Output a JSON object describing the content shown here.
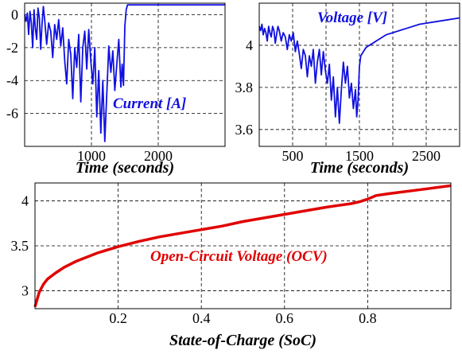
{
  "chart_data": [
    {
      "type": "line",
      "xlabel": "Time (seconds)",
      "ylabel": "",
      "xlim": [
        0,
        3000
      ],
      "ylim": [
        -8,
        0.7
      ],
      "xticks": [
        1000,
        2000
      ],
      "yticks": [
        0,
        -2,
        -4,
        -6
      ],
      "grid": true,
      "series": [
        {
          "name": "Current [A]",
          "color": "#1010e0",
          "x": [
            0,
            20,
            40,
            60,
            80,
            100,
            120,
            140,
            160,
            180,
            200,
            220,
            240,
            260,
            280,
            300,
            330,
            360,
            390,
            420,
            450,
            480,
            510,
            540,
            570,
            600,
            630,
            660,
            690,
            720,
            750,
            780,
            810,
            840,
            870,
            900,
            930,
            960,
            990,
            1020,
            1050,
            1080,
            1110,
            1140,
            1170,
            1200,
            1230,
            1260,
            1290,
            1320,
            1350,
            1380,
            1410,
            1440,
            1460,
            1480,
            1500,
            1520,
            1540,
            3000
          ],
          "y": [
            0,
            -0.4,
            0.1,
            -1.2,
            0.2,
            -0.5,
            -2.0,
            0.3,
            -0.8,
            -1.5,
            0.4,
            -0.2,
            -2.1,
            -0.6,
            0.5,
            -0.3,
            -1.8,
            -0.5,
            -1.0,
            -2.6,
            -0.6,
            -1.5,
            -0.3,
            -1.9,
            -0.8,
            -2.8,
            -4.2,
            -1.5,
            -2.4,
            -5.1,
            -2.0,
            -3.2,
            -1.2,
            -5.3,
            -2.0,
            -1.0,
            -3.3,
            -0.9,
            -2.8,
            -4.2,
            -2.0,
            -6.2,
            -3.4,
            -7.2,
            -4.0,
            -7.7,
            -4.8,
            -1.9,
            -3.5,
            -2.2,
            -4.6,
            -3.0,
            -1.5,
            -4.4,
            -3.0,
            -4.3,
            -0.7,
            0.3,
            0.6,
            0.6
          ]
        }
      ]
    },
    {
      "type": "line",
      "xlabel": "Time (seconds)",
      "ylabel": "",
      "xlim": [
        0,
        3000
      ],
      "ylim": [
        3.52,
        4.2
      ],
      "xticks": [
        500,
        1000,
        1500,
        2000,
        2500
      ],
      "xtick_labels": [
        "500",
        "",
        "1500",
        "",
        "2500"
      ],
      "yticks": [
        4,
        3.8,
        3.6
      ],
      "grid": true,
      "series": [
        {
          "name": "Voltage [V]",
          "color": "#1010e0",
          "x": [
            0,
            20,
            40,
            60,
            80,
            100,
            120,
            140,
            160,
            180,
            200,
            220,
            240,
            260,
            280,
            300,
            330,
            360,
            390,
            420,
            450,
            480,
            510,
            540,
            570,
            600,
            630,
            660,
            690,
            720,
            750,
            780,
            810,
            840,
            870,
            900,
            930,
            960,
            990,
            1020,
            1050,
            1080,
            1110,
            1140,
            1170,
            1200,
            1230,
            1260,
            1290,
            1320,
            1350,
            1380,
            1410,
            1440,
            1460,
            1480,
            1500,
            1520,
            1540,
            1560,
            1600,
            1650,
            1700,
            1800,
            1900,
            2000,
            2200,
            2400,
            2600,
            2800,
            3000
          ],
          "y": [
            4.09,
            4.07,
            4.1,
            4.05,
            4.08,
            4.06,
            4.02,
            4.09,
            4.06,
            4.04,
            4.09,
            4.07,
            4.01,
            4.05,
            4.09,
            4.07,
            4.02,
            4.06,
            4.04,
            3.98,
            4.05,
            4.02,
            4.06,
            3.97,
            4.02,
            3.96,
            3.89,
            3.98,
            3.95,
            3.85,
            3.95,
            3.9,
            3.98,
            3.82,
            3.92,
            3.98,
            3.86,
            3.97,
            3.88,
            3.82,
            3.91,
            3.74,
            3.85,
            3.66,
            3.8,
            3.63,
            3.79,
            3.92,
            3.82,
            3.9,
            3.75,
            3.82,
            3.7,
            3.79,
            3.66,
            3.74,
            3.9,
            3.95,
            3.96,
            3.97,
            3.99,
            4.0,
            4.01,
            4.03,
            4.05,
            4.06,
            4.08,
            4.1,
            4.11,
            4.12,
            4.13
          ]
        }
      ]
    },
    {
      "type": "line",
      "xlabel": "State-of-Charge (SoC)",
      "ylabel": "",
      "xlim": [
        0,
        1
      ],
      "ylim": [
        2.8,
        4.2
      ],
      "xticks": [
        0.2,
        0.4,
        0.6,
        0.8
      ],
      "yticks": [
        4,
        3.5,
        3
      ],
      "grid": true,
      "series": [
        {
          "name": "Open-Circuit Voltage (OCV)",
          "color": "#e00000",
          "x": [
            0.0,
            0.005,
            0.01,
            0.02,
            0.03,
            0.05,
            0.07,
            0.1,
            0.15,
            0.2,
            0.25,
            0.3,
            0.35,
            0.4,
            0.45,
            0.5,
            0.55,
            0.6,
            0.65,
            0.7,
            0.73,
            0.76,
            0.78,
            0.8,
            0.82,
            0.85,
            0.9,
            0.95,
            1.0
          ],
          "y": [
            2.82,
            2.9,
            2.98,
            3.07,
            3.13,
            3.2,
            3.26,
            3.33,
            3.42,
            3.49,
            3.55,
            3.6,
            3.64,
            3.68,
            3.72,
            3.77,
            3.81,
            3.85,
            3.89,
            3.93,
            3.95,
            3.97,
            3.99,
            4.02,
            4.06,
            4.08,
            4.11,
            4.14,
            4.17
          ]
        }
      ]
    }
  ]
}
